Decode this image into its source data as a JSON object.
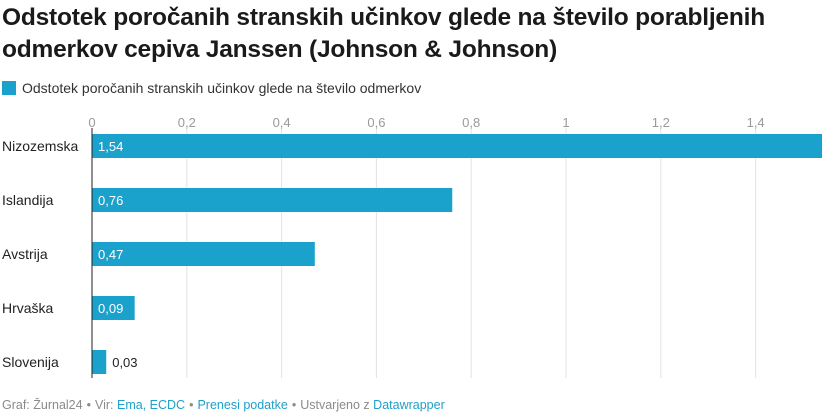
{
  "title": "Odstotek poročanih stranskih učinkov glede na število porabljenih odmerkov cepiva Janssen (Johnson & Johnson)",
  "legend_label": "Odstotek poročanih stranskih učinkov glede na število odmerkov",
  "colors": {
    "bar": "#1aa1cc",
    "axis": "#222222",
    "grid": "#e3e3e3",
    "tick": "#9a9a9a"
  },
  "footer": {
    "graph": "Graf: Žurnal24",
    "source_prefix": "Vir:",
    "source": "Ema, ECDC",
    "download": "Prenesi podatke",
    "created_prefix": "Ustvarjeno z",
    "tool": "Datawrapper"
  },
  "chart_data": {
    "type": "bar",
    "orientation": "horizontal",
    "categories": [
      "Nizozemska",
      "Islandija",
      "Avstrija",
      "Hrvaška",
      "Slovenija"
    ],
    "values": [
      1.54,
      0.76,
      0.47,
      0.09,
      0.03
    ],
    "value_labels": [
      "1,54",
      "0,76",
      "0,47",
      "0,09",
      "0,03"
    ],
    "ticks": [
      0,
      0.2,
      0.4,
      0.6,
      0.8,
      1,
      1.2,
      1.4
    ],
    "tick_labels": [
      "0",
      "0,2",
      "0,4",
      "0,6",
      "0,8",
      "1",
      "1,2",
      "1,4"
    ],
    "xlim": [
      0,
      1.54
    ],
    "series": [
      {
        "name": "Odstotek poročanih stranskih učinkov glede na število odmerkov",
        "values": [
          1.54,
          0.76,
          0.47,
          0.09,
          0.03
        ]
      }
    ]
  }
}
